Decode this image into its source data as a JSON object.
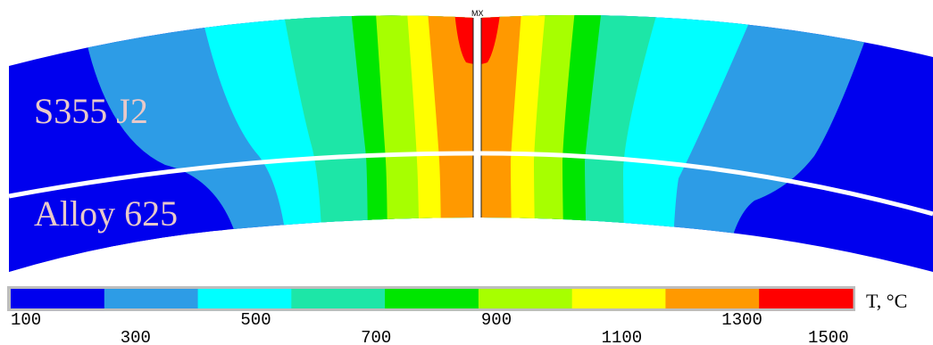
{
  "materials": {
    "top": "S355 J2",
    "bottom": "Alloy 625"
  },
  "max_marker": "MX",
  "legend": {
    "unit_label": "T, °C",
    "ticks_lower_row": [
      "100",
      "500",
      "900",
      "1300"
    ],
    "ticks_upper_row": [
      "300",
      "700",
      "1100",
      "1500"
    ],
    "colors": [
      "#0000ee",
      "#2d9ce6",
      "#00ffff",
      "#1de6a7",
      "#00e600",
      "#a7ff00",
      "#ffff00",
      "#ff9900",
      "#ff0000"
    ]
  },
  "chart_data": {
    "type": "heatmap",
    "title": "",
    "scale": {
      "min": 100,
      "max": 1500,
      "unit": "°C",
      "bins": 9
    },
    "regions": [
      "S355 J2",
      "Alloy 625"
    ]
  }
}
